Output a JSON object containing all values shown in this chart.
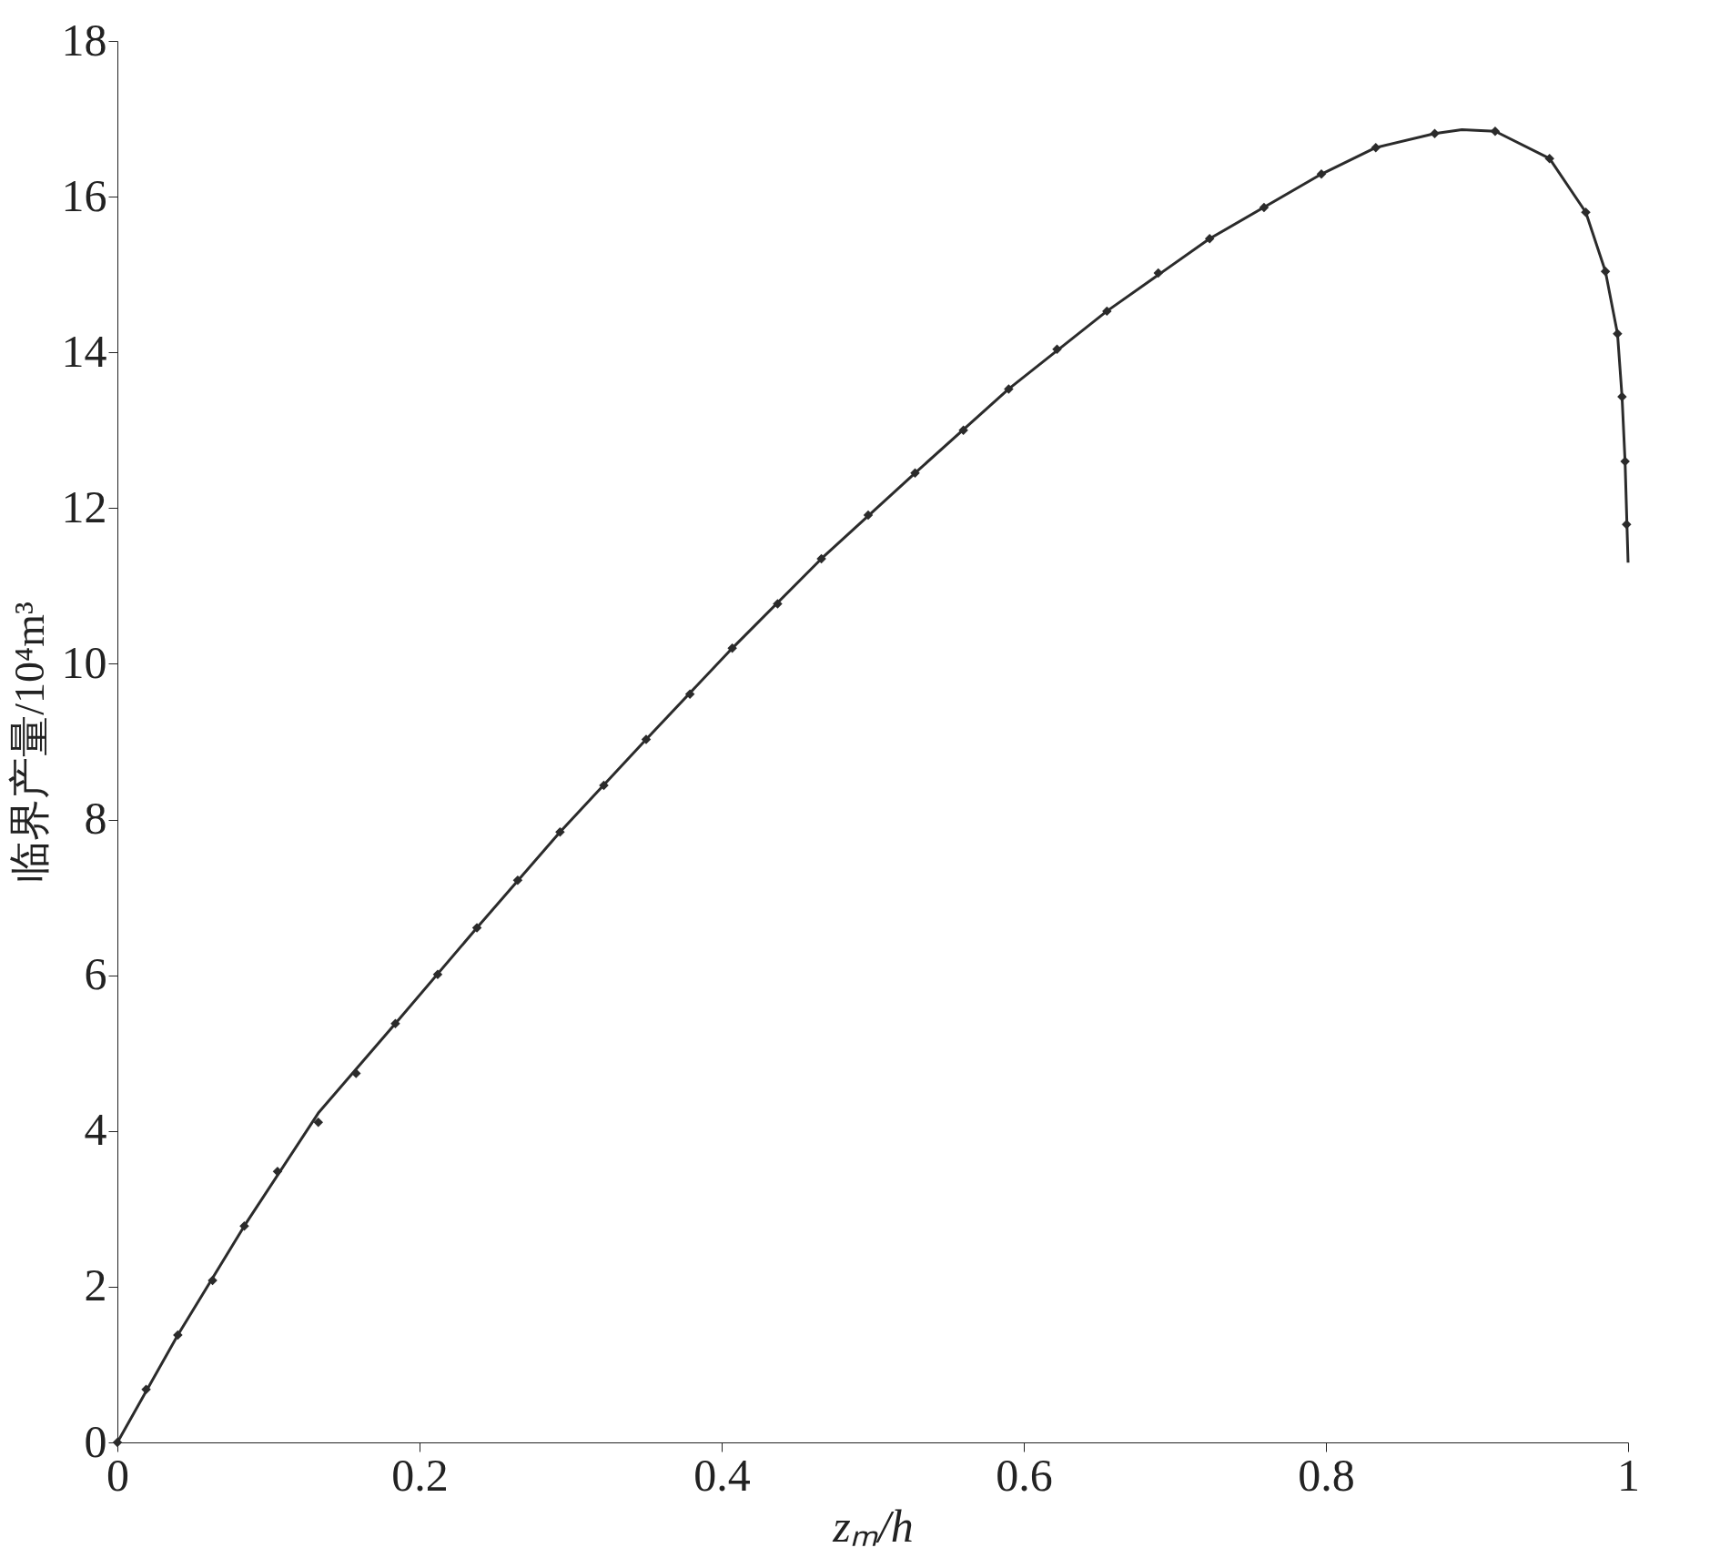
{
  "chart_data": {
    "type": "line",
    "xlabel": "zₘ/h",
    "ylabel": "临界产量/10⁴m³",
    "xlim": [
      0,
      1
    ],
    "ylim": [
      0,
      18
    ],
    "xticks": [
      0,
      0.2,
      0.4,
      0.6,
      0.8,
      1
    ],
    "yticks": [
      0,
      2,
      4,
      6,
      8,
      10,
      12,
      14,
      16,
      18
    ],
    "grid": false,
    "series": [
      {
        "color": "#2b2b2b",
        "marker": "none",
        "line_style": "solid",
        "x": [
          0,
          0.04,
          0.084,
          0.133,
          0.184,
          0.238,
          0.293,
          0.35,
          0.407,
          0.466,
          0.528,
          0.59,
          0.655,
          0.723,
          0.797,
          0.833,
          0.872,
          0.89,
          0.912,
          0.948,
          0.972,
          0.985,
          0.993,
          0.996,
          0.998,
          1.0
        ],
        "values": [
          0,
          1.38,
          2.78,
          4.23,
          5.38,
          6.61,
          7.84,
          9.03,
          10.2,
          11.35,
          12.45,
          13.53,
          14.53,
          15.46,
          16.29,
          16.63,
          16.81,
          16.86,
          16.84,
          16.49,
          15.8,
          15.04,
          14.24,
          13.43,
          12.6,
          11.3
        ]
      },
      {
        "type": "scatter",
        "color": "#2b2b2b",
        "marker": "diamond",
        "x": [
          0,
          0.019,
          0.04,
          0.063,
          0.084,
          0.106,
          0.133,
          0.158,
          0.184,
          0.212,
          0.238,
          0.265,
          0.293,
          0.322,
          0.35,
          0.379,
          0.407,
          0.437,
          0.466,
          0.497,
          0.528,
          0.56,
          0.59,
          0.622,
          0.655,
          0.689,
          0.723,
          0.759,
          0.797,
          0.833,
          0.872,
          0.912,
          0.948,
          0.972,
          0.985,
          0.993,
          0.996,
          0.998,
          0.999
        ],
        "values": [
          0,
          0.68,
          1.38,
          2.08,
          2.78,
          3.48,
          4.11,
          4.74,
          5.38,
          6.01,
          6.61,
          7.22,
          7.84,
          8.44,
          9.03,
          9.61,
          10.2,
          10.77,
          11.35,
          11.91,
          12.45,
          13.0,
          13.53,
          14.04,
          14.53,
          15.02,
          15.46,
          15.86,
          16.29,
          16.63,
          16.81,
          16.84,
          16.49,
          15.8,
          15.04,
          14.24,
          13.43,
          12.6,
          11.79
        ]
      }
    ]
  }
}
